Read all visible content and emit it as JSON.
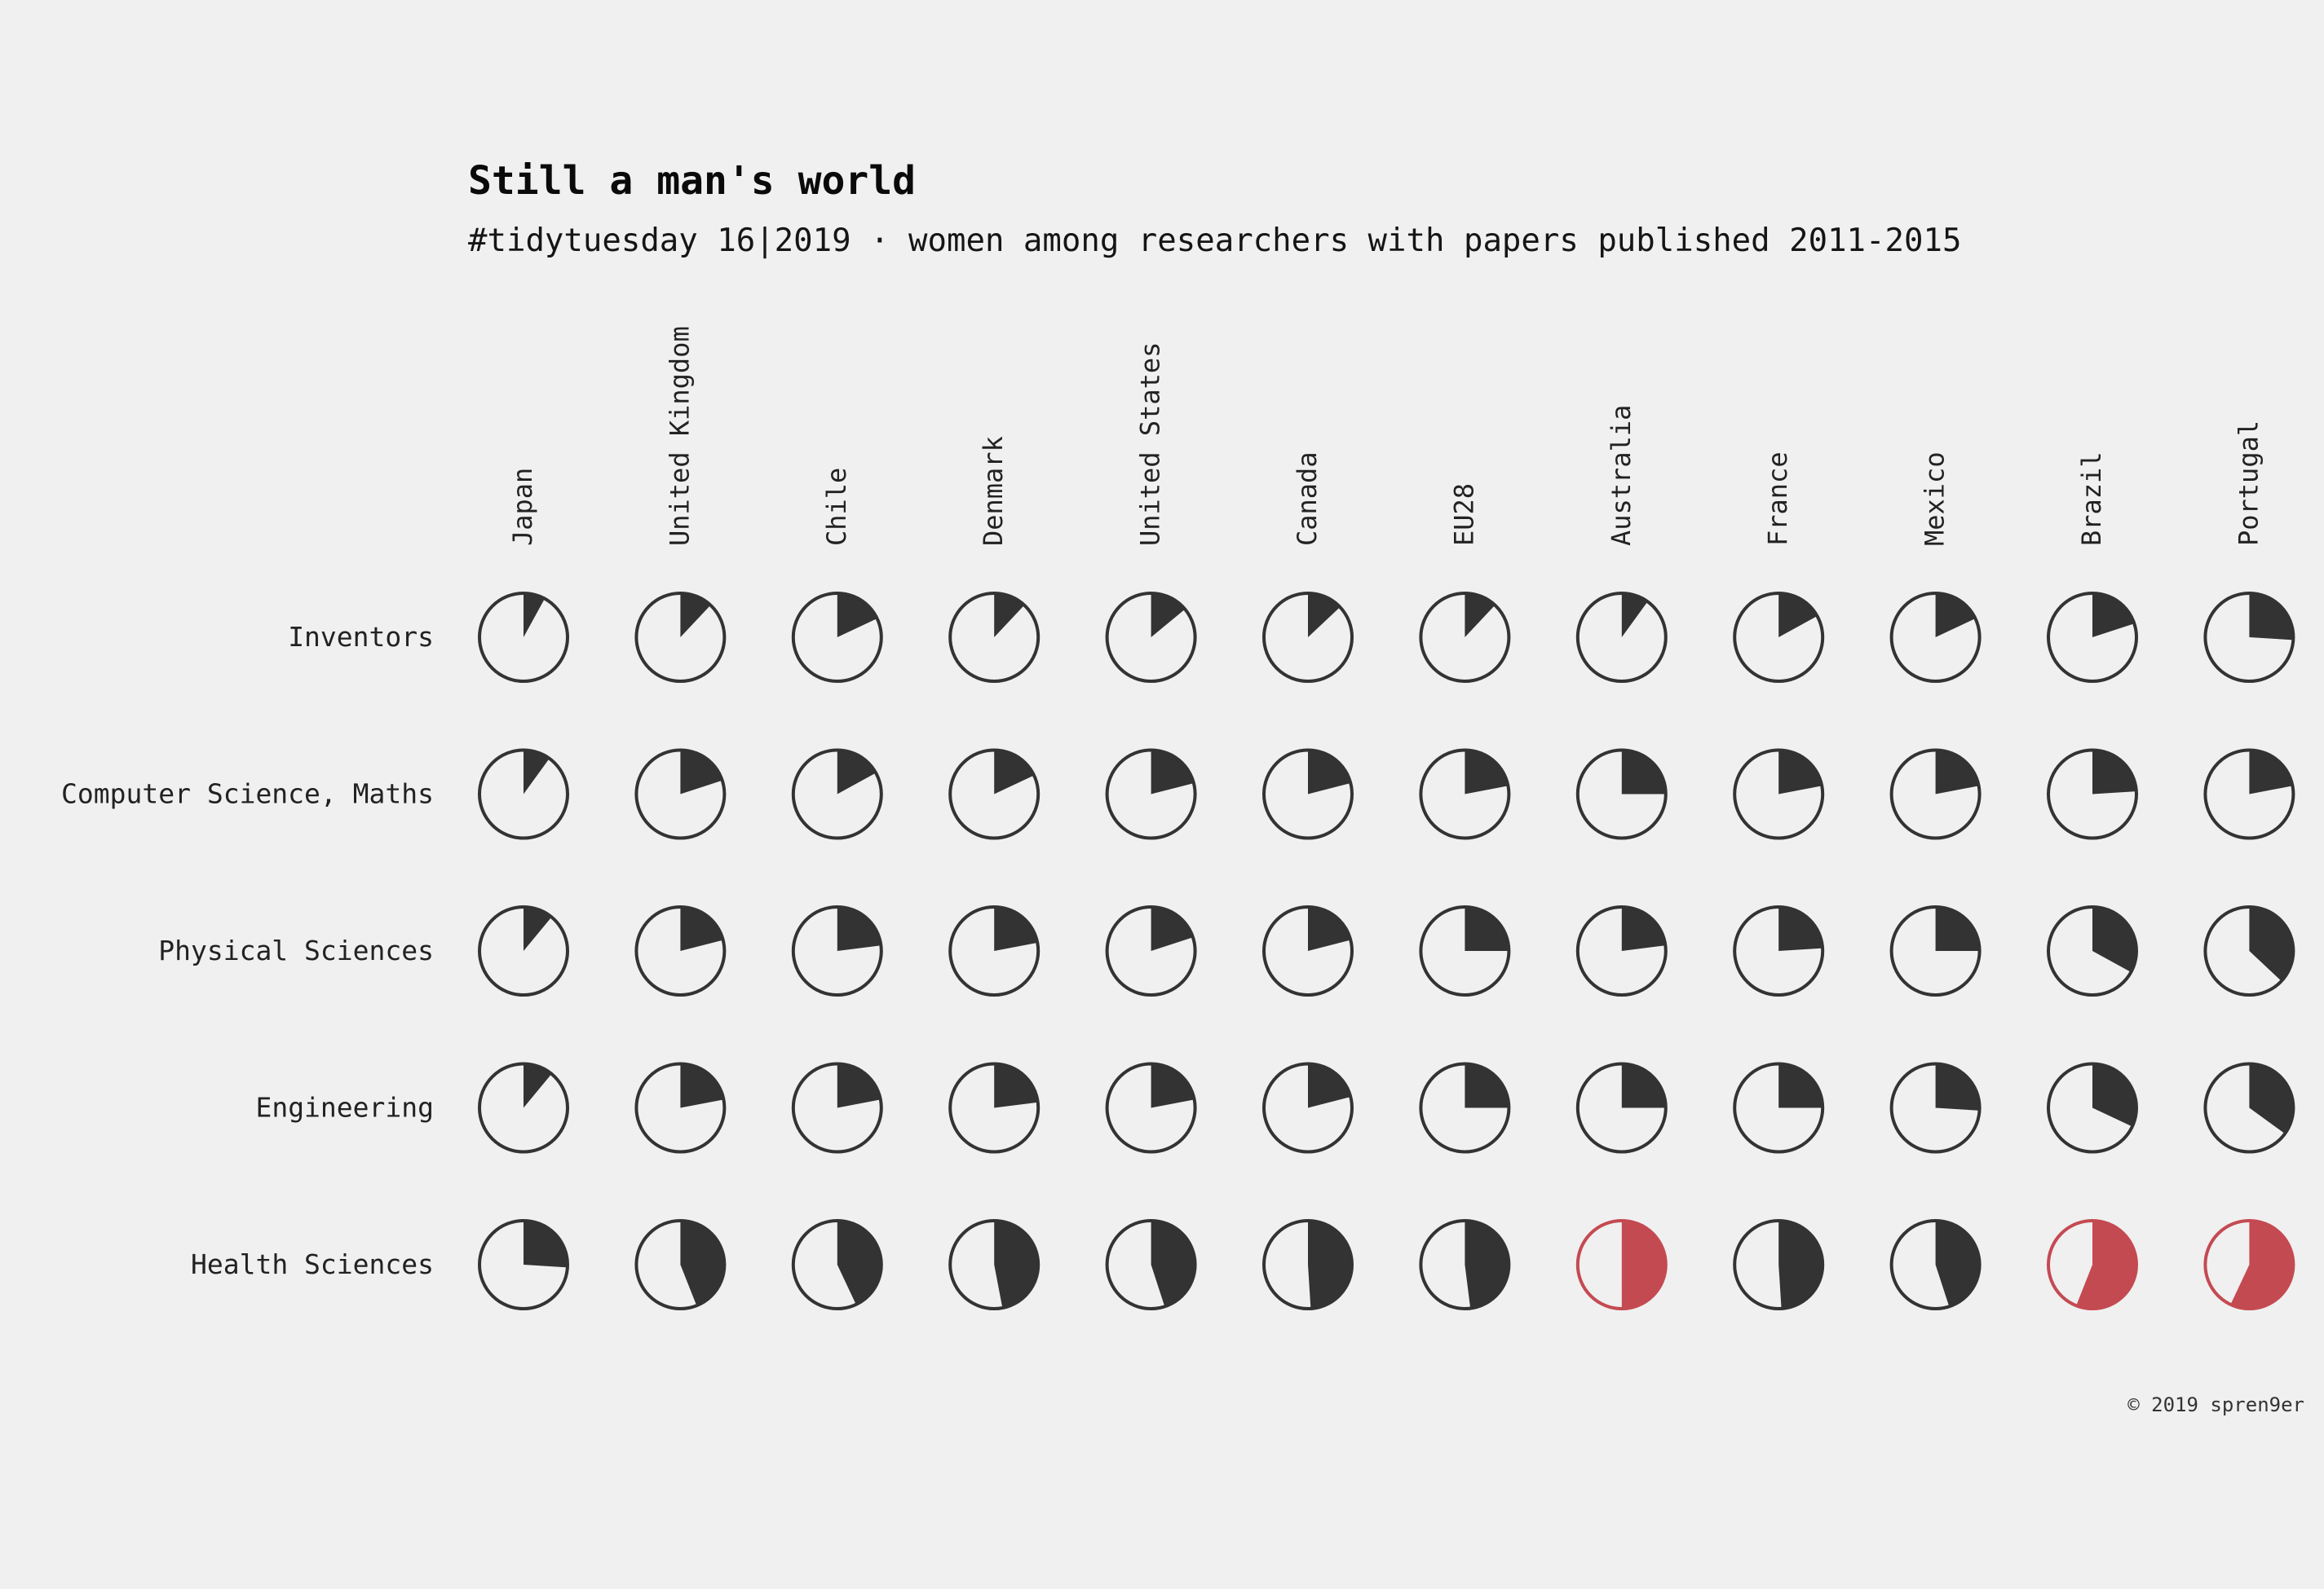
{
  "chart_data": {
    "type": "pie",
    "title": "Still a man's world",
    "subtitle": "#tidytuesday 16|2019 · women among researchers with papers published 2011-2015",
    "caption": "© 2019 spren9er",
    "countries": [
      "Japan",
      "United Kingdom",
      "Chile",
      "Denmark",
      "United States",
      "Canada",
      "EU28",
      "Australia",
      "France",
      "Mexico",
      "Brazil",
      "Portugal"
    ],
    "fields": [
      "Inventors",
      "Computer Science, Maths",
      "Physical Sciences",
      "Engineering",
      "Health Sciences"
    ],
    "values": [
      [
        0.08,
        0.12,
        0.18,
        0.12,
        0.14,
        0.13,
        0.12,
        0.1,
        0.17,
        0.18,
        0.2,
        0.26
      ],
      [
        0.1,
        0.2,
        0.17,
        0.18,
        0.21,
        0.21,
        0.22,
        0.25,
        0.22,
        0.22,
        0.24,
        0.22
      ],
      [
        0.11,
        0.21,
        0.23,
        0.22,
        0.2,
        0.21,
        0.25,
        0.23,
        0.24,
        0.25,
        0.33,
        0.37
      ],
      [
        0.11,
        0.22,
        0.22,
        0.23,
        0.22,
        0.21,
        0.25,
        0.25,
        0.25,
        0.26,
        0.32,
        0.35
      ],
      [
        0.26,
        0.44,
        0.43,
        0.47,
        0.45,
        0.49,
        0.48,
        0.5,
        0.49,
        0.45,
        0.56,
        0.57
      ]
    ],
    "colors": {
      "below_parity": "#333333",
      "at_or_above_parity": "#c44a52",
      "empty": "#f0f0f0",
      "background": "#f0f0f0"
    }
  }
}
